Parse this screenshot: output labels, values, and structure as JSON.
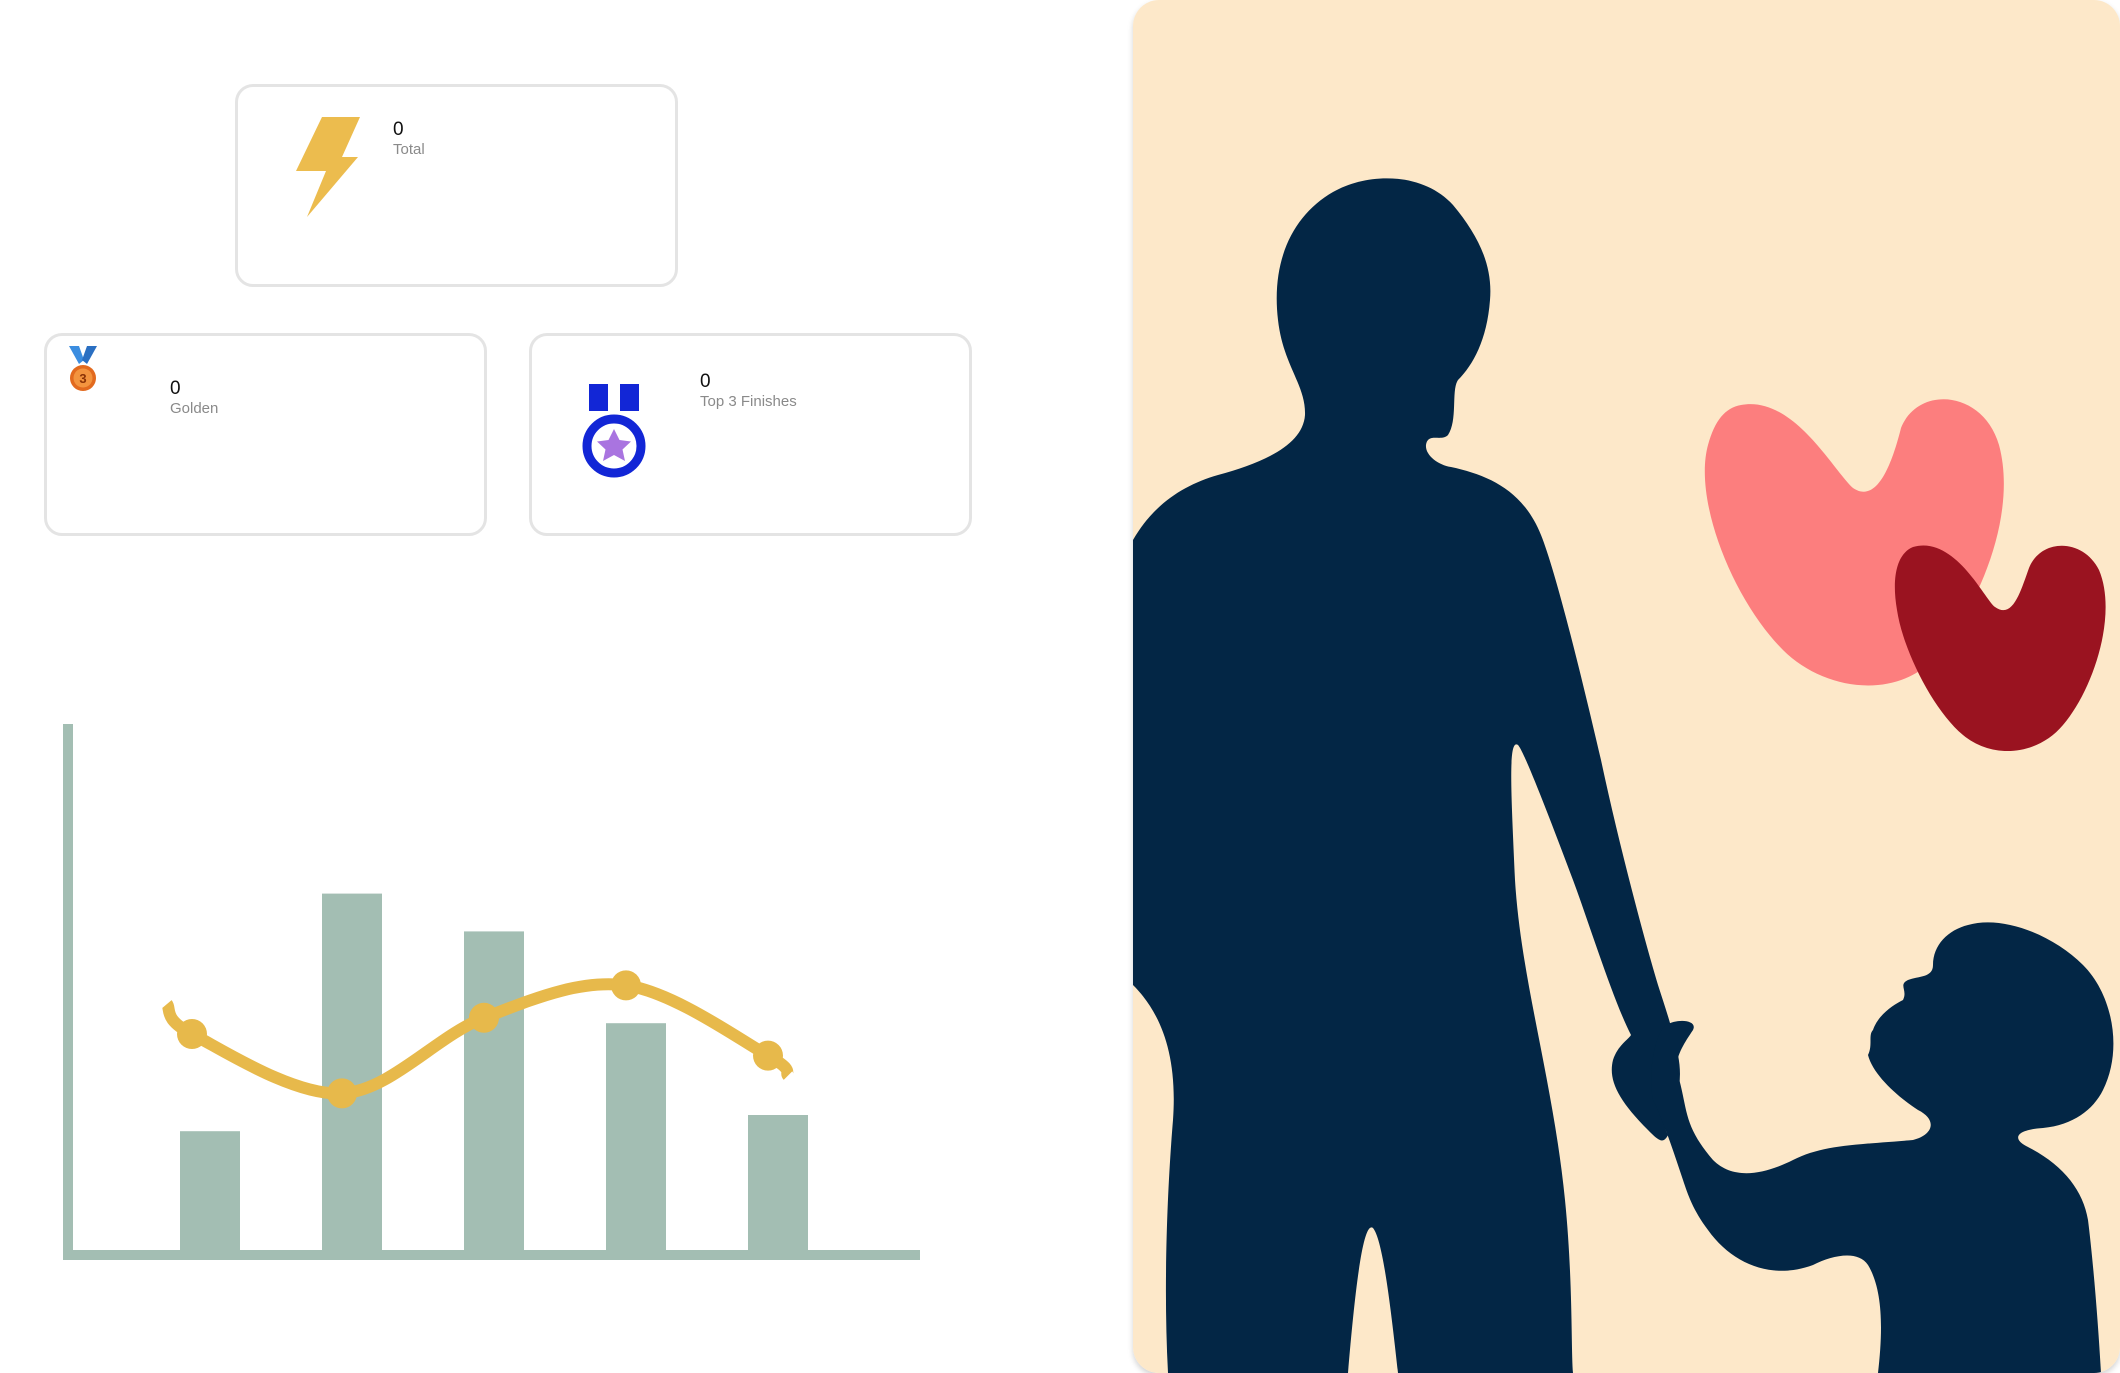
{
  "stats": {
    "total": {
      "value": "0",
      "label": "Total",
      "icon": "lightning-bolt-icon"
    },
    "golden": {
      "value": "0",
      "label": "Golden",
      "icon": "third-place-medal-icon"
    },
    "top3": {
      "value": "0",
      "label": "Top 3 Finishes",
      "icon": "star-medal-icon"
    }
  },
  "colors": {
    "bolt": "#ecbc4e",
    "medal_blue": "#1226d6",
    "medal_star": "#a974e0",
    "bar": "#a3beb3",
    "trend_line": "#e7b94b",
    "illustration_bg": "#fde8c9",
    "silhouette": "#032645",
    "heart_light": "#fc7e7e",
    "heart_dark": "#9a1320"
  },
  "decor_chart": {
    "bars": [
      0.22,
      0.66,
      0.59,
      0.42,
      0.25
    ],
    "trend": [
      0.4,
      0.29,
      0.43,
      0.49,
      0.36
    ]
  }
}
